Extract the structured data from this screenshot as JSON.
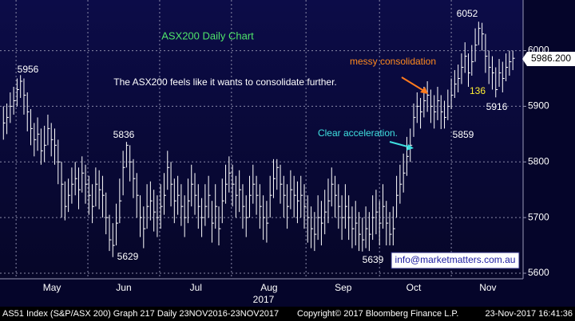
{
  "chart_data": {
    "type": "ohlc",
    "title": "ASX200 Daily Chart",
    "x_axis_year": "2017",
    "annotations": {
      "comment": "The ASX200 feels like it wants to consolidate further.",
      "messy": "messy consolidation",
      "accel": "Clear acceleration.",
      "email": "info@marketmatters.com.au",
      "high_may": "5956",
      "high_jun": "5836",
      "low_jun": "5629",
      "low_sep": "5639",
      "low_oct": "5859",
      "high_nov": "6052",
      "low_nov": "5916",
      "count": "136",
      "last_price": "5986.200"
    },
    "footer": {
      "left": "AS51 Index (S&P/ASX 200) Graph 217  Daily 23NOV2016-23NOV2017",
      "middle": "Copyright© 2017 Bloomberg Finance L.P.",
      "right": "23-Nov-2017 16:41:36"
    },
    "color": "#ffffff",
    "xlim": [
      -1,
      152
    ],
    "xticks": [
      {
        "value": 14.2,
        "label": "May"
      },
      {
        "value": 35.2,
        "label": "Jun"
      },
      {
        "value": 56.3,
        "label": "Jul"
      },
      {
        "value": 77.7,
        "label": "Aug"
      },
      {
        "value": 99.4,
        "label": "Sep"
      },
      {
        "value": 120,
        "label": "Oct"
      },
      {
        "value": 141.7,
        "label": "Nov"
      }
    ],
    "xgrid": [
      3.7,
      24.7,
      45.7,
      66.7,
      88.5,
      110,
      131
    ],
    "ylim": [
      5590,
      6091
    ],
    "yticks": [
      5600,
      5700,
      5800,
      5900,
      6000
    ],
    "grid": true,
    "close": [
      5870,
      5880,
      5900,
      5910,
      5930,
      5945,
      5920,
      5890,
      5860,
      5840,
      5850,
      5820,
      5830,
      5860,
      5840,
      5830,
      5800,
      5760,
      5720,
      5740,
      5760,
      5770,
      5750,
      5780,
      5760,
      5740,
      5720,
      5760,
      5750,
      5740,
      5700,
      5660,
      5650,
      5690,
      5730,
      5790,
      5830,
      5800,
      5770,
      5740,
      5700,
      5680,
      5720,
      5730,
      5710,
      5700,
      5720,
      5740,
      5790,
      5760,
      5730,
      5740,
      5720,
      5700,
      5730,
      5760,
      5740,
      5720,
      5700,
      5720,
      5740,
      5690,
      5720,
      5680,
      5730,
      5760,
      5780,
      5760,
      5740,
      5750,
      5720,
      5700,
      5740,
      5760,
      5740,
      5720,
      5700,
      5690,
      5740,
      5770,
      5790,
      5760,
      5740,
      5720,
      5750,
      5740,
      5730,
      5740,
      5720,
      5700,
      5680,
      5670,
      5700,
      5690,
      5710,
      5730,
      5760,
      5740,
      5720,
      5700,
      5720,
      5700,
      5680,
      5690,
      5670,
      5660,
      5680,
      5670,
      5700,
      5710,
      5690,
      5720,
      5690,
      5670,
      5680,
      5740,
      5760,
      5780,
      5810,
      5830,
      5880,
      5900,
      5890,
      5910,
      5920,
      5900,
      5890,
      5910,
      5890,
      5880,
      5900,
      5920,
      5940,
      5950,
      5970,
      5990,
      5960,
      5980,
      6010,
      6040,
      6030,
      5990,
      5970,
      5960,
      5930,
      5960,
      5950,
      5970,
      5980,
      5986.2
    ],
    "high": [
      5900,
      5905,
      5925,
      5935,
      5950,
      5956,
      5950,
      5925,
      5895,
      5870,
      5880,
      5860,
      5865,
      5885,
      5870,
      5860,
      5840,
      5800,
      5765,
      5770,
      5790,
      5800,
      5790,
      5810,
      5795,
      5775,
      5760,
      5790,
      5785,
      5775,
      5745,
      5705,
      5690,
      5725,
      5770,
      5820,
      5836,
      5830,
      5805,
      5780,
      5740,
      5720,
      5760,
      5765,
      5750,
      5740,
      5760,
      5780,
      5820,
      5800,
      5770,
      5775,
      5760,
      5740,
      5770,
      5795,
      5780,
      5760,
      5735,
      5760,
      5775,
      5730,
      5760,
      5720,
      5770,
      5795,
      5810,
      5795,
      5775,
      5785,
      5760,
      5740,
      5775,
      5795,
      5775,
      5760,
      5740,
      5730,
      5775,
      5805,
      5805,
      5795,
      5775,
      5760,
      5785,
      5775,
      5765,
      5775,
      5760,
      5740,
      5720,
      5710,
      5740,
      5730,
      5750,
      5770,
      5790,
      5775,
      5760,
      5740,
      5760,
      5740,
      5720,
      5730,
      5710,
      5700,
      5720,
      5710,
      5740,
      5750,
      5730,
      5760,
      5730,
      5710,
      5720,
      5775,
      5795,
      5815,
      5845,
      5860,
      5905,
      5925,
      5915,
      5935,
      5945,
      5930,
      5920,
      5935,
      5920,
      5910,
      5930,
      5950,
      5965,
      5975,
      5995,
      6015,
      5995,
      6010,
      6040,
      6052,
      6050,
      6030,
      6000,
      5990,
      5970,
      5985,
      5980,
      5995,
      6000,
      6000
    ],
    "low": [
      5840,
      5850,
      5870,
      5885,
      5900,
      5915,
      5885,
      5855,
      5830,
      5810,
      5820,
      5795,
      5800,
      5830,
      5810,
      5795,
      5760,
      5700,
      5695,
      5710,
      5725,
      5740,
      5715,
      5745,
      5725,
      5705,
      5690,
      5720,
      5715,
      5700,
      5670,
      5640,
      5629,
      5650,
      5690,
      5740,
      5790,
      5765,
      5735,
      5700,
      5665,
      5645,
      5680,
      5695,
      5675,
      5665,
      5680,
      5705,
      5750,
      5720,
      5690,
      5705,
      5685,
      5665,
      5690,
      5720,
      5705,
      5680,
      5665,
      5685,
      5700,
      5655,
      5680,
      5650,
      5690,
      5725,
      5745,
      5720,
      5700,
      5710,
      5680,
      5665,
      5700,
      5725,
      5705,
      5680,
      5660,
      5655,
      5700,
      5735,
      5750,
      5725,
      5700,
      5680,
      5715,
      5700,
      5690,
      5700,
      5680,
      5655,
      5645,
      5640,
      5660,
      5650,
      5670,
      5690,
      5720,
      5700,
      5680,
      5660,
      5680,
      5660,
      5645,
      5650,
      5640,
      5639,
      5645,
      5640,
      5660,
      5670,
      5650,
      5680,
      5650,
      5650,
      5650,
      5700,
      5725,
      5745,
      5775,
      5800,
      5845,
      5870,
      5860,
      5880,
      5890,
      5870,
      5860,
      5875,
      5859,
      5860,
      5875,
      5895,
      5915,
      5925,
      5940,
      5960,
      5935,
      5955,
      5980,
      6010,
      6000,
      5960,
      5940,
      5930,
      5916,
      5935,
      5925,
      5945,
      5955,
      5965
    ]
  }
}
